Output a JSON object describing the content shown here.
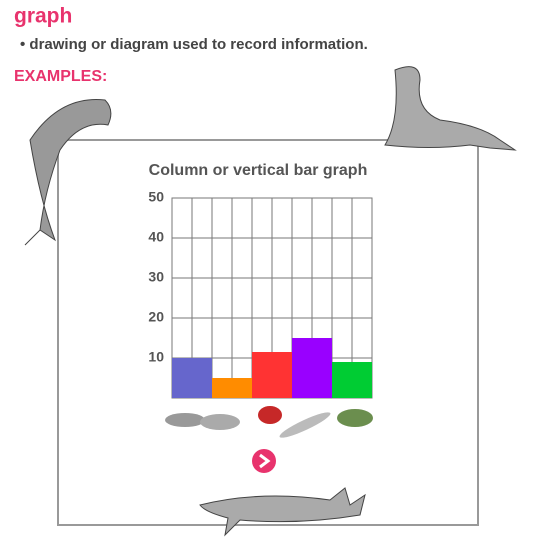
{
  "header": {
    "title": "graph",
    "definition": "• drawing or diagram used to record information.",
    "examples_label": "EXAMPLES:"
  },
  "chart_data": {
    "type": "bar",
    "title": "Column or vertical bar graph",
    "categories": [
      null,
      null,
      null,
      null,
      null
    ],
    "values": [
      10,
      5,
      11.5,
      15,
      9
    ],
    "colors": [
      "#6666cc",
      "#ff8c00",
      "#ff3333",
      "#9900ff",
      "#00cc33"
    ],
    "ylim": [
      0,
      50
    ],
    "yticks": [
      10,
      20,
      30,
      40,
      50
    ],
    "grid": true
  }
}
